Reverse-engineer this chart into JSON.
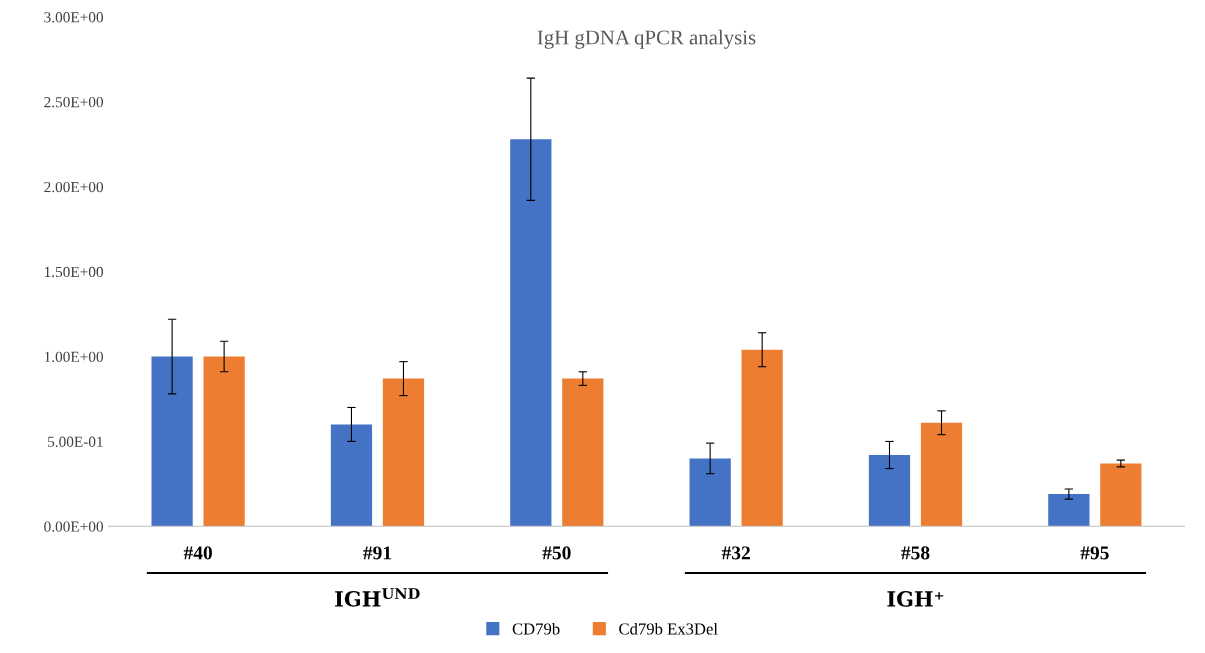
{
  "chart_data": {
    "type": "bar",
    "title": "IgH gDNA qPCR analysis",
    "categories": [
      "#40",
      "#91",
      "#50",
      "#32",
      "#58",
      "#95"
    ],
    "series": [
      {
        "name": "CD79b",
        "color": "#4472c4",
        "values": [
          1.0,
          0.6,
          2.28,
          0.4,
          0.42,
          0.19
        ],
        "errors": [
          0.22,
          0.1,
          0.36,
          0.09,
          0.08,
          0.03
        ]
      },
      {
        "name": "Cd79b Ex3Del",
        "color": "#ed7d31",
        "values": [
          1.0,
          0.87,
          0.87,
          1.04,
          0.61,
          0.37
        ],
        "errors": [
          0.09,
          0.1,
          0.04,
          0.1,
          0.07,
          0.02
        ]
      }
    ],
    "ylim": [
      0,
      3
    ],
    "yticks": [
      {
        "value": 0,
        "label": "0.00E+00"
      },
      {
        "value": 0.5,
        "label": "5.00E-01"
      },
      {
        "value": 1,
        "label": "1.00E+00"
      },
      {
        "value": 1.5,
        "label": "1.50E+00"
      },
      {
        "value": 2,
        "label": "2.00E+00"
      },
      {
        "value": 2.5,
        "label": "2.50E+00"
      },
      {
        "value": 3,
        "label": "3.00E+00"
      }
    ],
    "annotations": [
      "IGH$^{UND}$",
      "IGH⁺"
    ],
    "grid": false,
    "legend": "bottom"
  }
}
